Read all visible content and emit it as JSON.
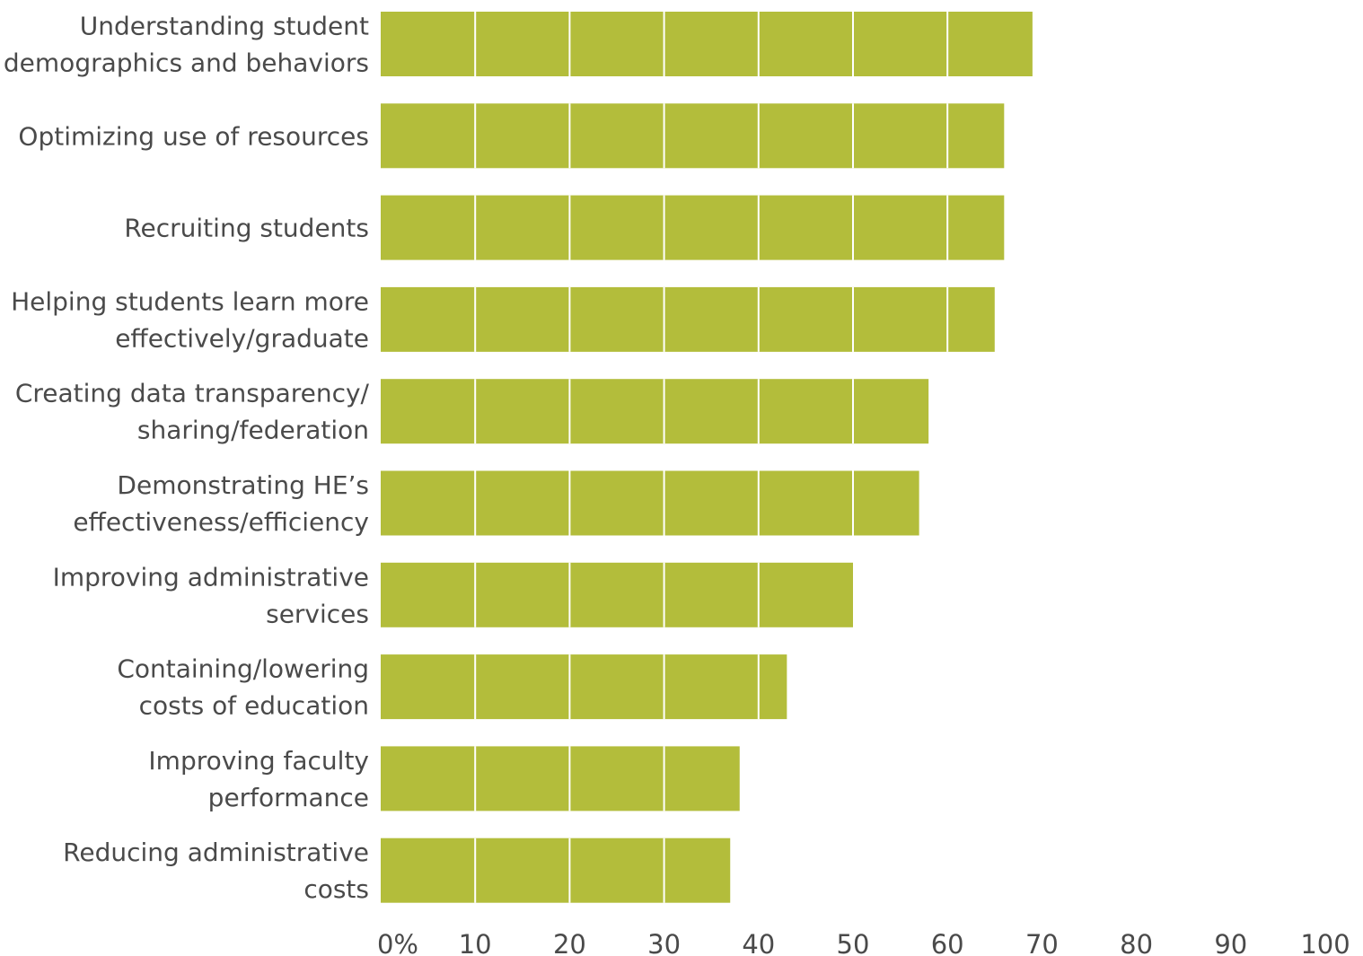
{
  "colors": {
    "bar": "#b3bd3b",
    "divider": "#ffffff",
    "text": "#4a4a4a",
    "background": "#ffffff"
  },
  "chart_data": {
    "type": "bar",
    "orientation": "horizontal",
    "categories": [
      [
        "Understanding student",
        "demographics and behaviors"
      ],
      [
        "Optimizing use of resources"
      ],
      [
        "Recruiting students"
      ],
      [
        "Helping students learn more",
        "effectively/graduate"
      ],
      [
        "Creating data transparency/",
        "sharing/federation"
      ],
      [
        "Demonstrating HE’s",
        "effectiveness/efficiency"
      ],
      [
        "Improving administrative",
        "services"
      ],
      [
        "Containing/lowering",
        "costs of education"
      ],
      [
        "Improving faculty",
        "performance"
      ],
      [
        "Reducing administrative",
        "costs"
      ]
    ],
    "values": [
      69,
      66,
      66,
      65,
      58,
      57,
      50,
      43,
      38,
      37
    ],
    "x_ticks": [
      "0%",
      "10",
      "20",
      "30",
      "40",
      "50",
      "60",
      "70",
      "80",
      "90",
      "100"
    ],
    "xlim": [
      0,
      100
    ],
    "grid": false,
    "legend": "none",
    "title": "",
    "xlabel": "",
    "ylabel": ""
  }
}
